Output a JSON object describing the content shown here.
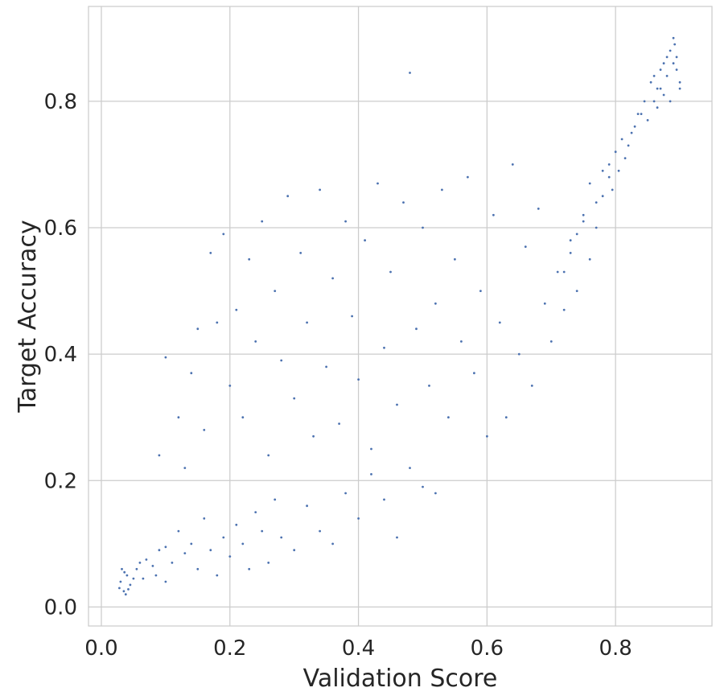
{
  "chart_data": {
    "type": "scatter",
    "title": "",
    "xlabel": "Validation Score",
    "ylabel": "Target Accuracy",
    "xlim": [
      -0.02,
      0.95
    ],
    "ylim": [
      -0.03,
      0.95
    ],
    "xticks": [
      0.0,
      0.2,
      0.4,
      0.6,
      0.8
    ],
    "yticks": [
      0.0,
      0.2,
      0.4,
      0.6,
      0.8
    ],
    "xtick_labels": [
      "0.0",
      "0.2",
      "0.4",
      "0.6",
      "0.8"
    ],
    "ytick_labels": [
      "0.0",
      "0.2",
      "0.4",
      "0.6",
      "0.8"
    ],
    "grid": true,
    "legend": "none",
    "marker_color": "#4c72b0",
    "series": [
      {
        "points": [
          [
            0.035,
            0.025
          ],
          [
            0.03,
            0.04
          ],
          [
            0.038,
            0.02
          ],
          [
            0.04,
            0.05
          ],
          [
            0.032,
            0.06
          ],
          [
            0.045,
            0.035
          ],
          [
            0.028,
            0.03
          ],
          [
            0.05,
            0.045
          ],
          [
            0.036,
            0.055
          ],
          [
            0.042,
            0.028
          ],
          [
            0.055,
            0.06
          ],
          [
            0.06,
            0.07
          ],
          [
            0.065,
            0.045
          ],
          [
            0.07,
            0.075
          ],
          [
            0.08,
            0.065
          ],
          [
            0.085,
            0.05
          ],
          [
            0.09,
            0.09
          ],
          [
            0.1,
            0.04
          ],
          [
            0.1,
            0.095
          ],
          [
            0.11,
            0.07
          ],
          [
            0.12,
            0.12
          ],
          [
            0.13,
            0.085
          ],
          [
            0.14,
            0.1
          ],
          [
            0.15,
            0.06
          ],
          [
            0.16,
            0.14
          ],
          [
            0.17,
            0.09
          ],
          [
            0.18,
            0.05
          ],
          [
            0.19,
            0.11
          ],
          [
            0.2,
            0.08
          ],
          [
            0.21,
            0.13
          ],
          [
            0.22,
            0.1
          ],
          [
            0.23,
            0.06
          ],
          [
            0.24,
            0.15
          ],
          [
            0.25,
            0.12
          ],
          [
            0.26,
            0.07
          ],
          [
            0.27,
            0.17
          ],
          [
            0.28,
            0.11
          ],
          [
            0.3,
            0.09
          ],
          [
            0.32,
            0.16
          ],
          [
            0.34,
            0.12
          ],
          [
            0.36,
            0.1
          ],
          [
            0.38,
            0.18
          ],
          [
            0.4,
            0.14
          ],
          [
            0.42,
            0.21
          ],
          [
            0.44,
            0.17
          ],
          [
            0.46,
            0.11
          ],
          [
            0.48,
            0.22
          ],
          [
            0.5,
            0.19
          ],
          [
            0.52,
            0.18
          ],
          [
            0.09,
            0.24
          ],
          [
            0.1,
            0.395
          ],
          [
            0.12,
            0.3
          ],
          [
            0.13,
            0.22
          ],
          [
            0.14,
            0.37
          ],
          [
            0.15,
            0.44
          ],
          [
            0.16,
            0.28
          ],
          [
            0.17,
            0.56
          ],
          [
            0.18,
            0.45
          ],
          [
            0.19,
            0.59
          ],
          [
            0.2,
            0.35
          ],
          [
            0.21,
            0.47
          ],
          [
            0.22,
            0.3
          ],
          [
            0.23,
            0.55
          ],
          [
            0.24,
            0.42
          ],
          [
            0.25,
            0.61
          ],
          [
            0.26,
            0.24
          ],
          [
            0.27,
            0.5
          ],
          [
            0.28,
            0.39
          ],
          [
            0.29,
            0.65
          ],
          [
            0.3,
            0.33
          ],
          [
            0.31,
            0.56
          ],
          [
            0.32,
            0.45
          ],
          [
            0.33,
            0.27
          ],
          [
            0.34,
            0.66
          ],
          [
            0.35,
            0.38
          ],
          [
            0.36,
            0.52
          ],
          [
            0.37,
            0.29
          ],
          [
            0.38,
            0.61
          ],
          [
            0.39,
            0.46
          ],
          [
            0.4,
            0.36
          ],
          [
            0.41,
            0.58
          ],
          [
            0.42,
            0.25
          ],
          [
            0.43,
            0.67
          ],
          [
            0.44,
            0.41
          ],
          [
            0.45,
            0.53
          ],
          [
            0.46,
            0.32
          ],
          [
            0.47,
            0.64
          ],
          [
            0.48,
            0.845
          ],
          [
            0.49,
            0.44
          ],
          [
            0.5,
            0.6
          ],
          [
            0.51,
            0.35
          ],
          [
            0.52,
            0.48
          ],
          [
            0.53,
            0.66
          ],
          [
            0.54,
            0.3
          ],
          [
            0.55,
            0.55
          ],
          [
            0.56,
            0.42
          ],
          [
            0.57,
            0.68
          ],
          [
            0.58,
            0.37
          ],
          [
            0.59,
            0.5
          ],
          [
            0.6,
            0.27
          ],
          [
            0.61,
            0.62
          ],
          [
            0.62,
            0.45
          ],
          [
            0.63,
            0.3
          ],
          [
            0.64,
            0.7
          ],
          [
            0.65,
            0.4
          ],
          [
            0.66,
            0.57
          ],
          [
            0.67,
            0.35
          ],
          [
            0.68,
            0.63
          ],
          [
            0.69,
            0.48
          ],
          [
            0.7,
            0.42
          ],
          [
            0.71,
            0.53
          ],
          [
            0.72,
            0.47
          ],
          [
            0.73,
            0.58
          ],
          [
            0.74,
            0.5
          ],
          [
            0.75,
            0.62
          ],
          [
            0.76,
            0.55
          ],
          [
            0.77,
            0.6
          ],
          [
            0.78,
            0.65
          ],
          [
            0.79,
            0.68
          ],
          [
            0.78,
            0.69
          ],
          [
            0.79,
            0.7
          ],
          [
            0.8,
            0.72
          ],
          [
            0.81,
            0.74
          ],
          [
            0.82,
            0.73
          ],
          [
            0.83,
            0.76
          ],
          [
            0.84,
            0.78
          ],
          [
            0.85,
            0.77
          ],
          [
            0.86,
            0.8
          ],
          [
            0.87,
            0.82
          ],
          [
            0.88,
            0.84
          ],
          [
            0.89,
            0.86
          ],
          [
            0.9,
            0.83
          ],
          [
            0.885,
            0.88
          ],
          [
            0.875,
            0.81
          ],
          [
            0.895,
            0.85
          ],
          [
            0.865,
            0.79
          ],
          [
            0.855,
            0.83
          ],
          [
            0.845,
            0.8
          ],
          [
            0.835,
            0.78
          ],
          [
            0.825,
            0.75
          ],
          [
            0.815,
            0.71
          ],
          [
            0.805,
            0.69
          ],
          [
            0.795,
            0.66
          ],
          [
            0.77,
            0.64
          ],
          [
            0.76,
            0.67
          ],
          [
            0.75,
            0.61
          ],
          [
            0.74,
            0.59
          ],
          [
            0.73,
            0.56
          ],
          [
            0.72,
            0.53
          ],
          [
            0.89,
            0.9
          ],
          [
            0.88,
            0.87
          ],
          [
            0.892,
            0.89
          ],
          [
            0.87,
            0.85
          ],
          [
            0.86,
            0.84
          ],
          [
            0.9,
            0.82
          ],
          [
            0.885,
            0.8
          ],
          [
            0.875,
            0.86
          ],
          [
            0.865,
            0.82
          ],
          [
            0.895,
            0.87
          ]
        ]
      }
    ]
  }
}
